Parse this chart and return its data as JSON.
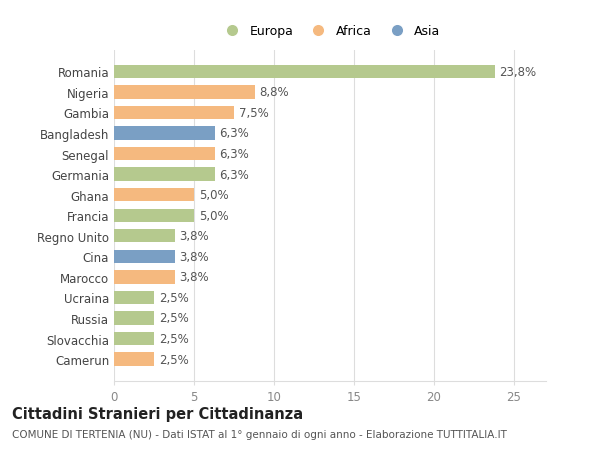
{
  "categories": [
    "Romania",
    "Nigeria",
    "Gambia",
    "Bangladesh",
    "Senegal",
    "Germania",
    "Ghana",
    "Francia",
    "Regno Unito",
    "Cina",
    "Marocco",
    "Ucraina",
    "Russia",
    "Slovacchia",
    "Camerun"
  ],
  "values": [
    23.8,
    8.8,
    7.5,
    6.3,
    6.3,
    6.3,
    5.0,
    5.0,
    3.8,
    3.8,
    3.8,
    2.5,
    2.5,
    2.5,
    2.5
  ],
  "labels": [
    "23,8%",
    "8,8%",
    "7,5%",
    "6,3%",
    "6,3%",
    "6,3%",
    "5,0%",
    "5,0%",
    "3,8%",
    "3,8%",
    "3,8%",
    "2,5%",
    "2,5%",
    "2,5%",
    "2,5%"
  ],
  "colors": [
    "#b5c98e",
    "#f5b97f",
    "#f5b97f",
    "#7a9fc4",
    "#f5b97f",
    "#b5c98e",
    "#f5b97f",
    "#b5c98e",
    "#b5c98e",
    "#7a9fc4",
    "#f5b97f",
    "#b5c98e",
    "#b5c98e",
    "#b5c98e",
    "#f5b97f"
  ],
  "legend": [
    {
      "label": "Europa",
      "color": "#b5c98e"
    },
    {
      "label": "Africa",
      "color": "#f5b97f"
    },
    {
      "label": "Asia",
      "color": "#7a9fc4"
    }
  ],
  "xlim": [
    0,
    27
  ],
  "xticks": [
    0,
    5,
    10,
    15,
    20,
    25
  ],
  "title": "Cittadini Stranieri per Cittadinanza",
  "subtitle": "COMUNE DI TERTENIA (NU) - Dati ISTAT al 1° gennaio di ogni anno - Elaborazione TUTTITALIA.IT",
  "background_color": "#ffffff",
  "grid_color": "#dddddd",
  "bar_height": 0.65,
  "label_fontsize": 8.5,
  "tick_fontsize": 8.5,
  "title_fontsize": 10.5,
  "subtitle_fontsize": 7.5
}
